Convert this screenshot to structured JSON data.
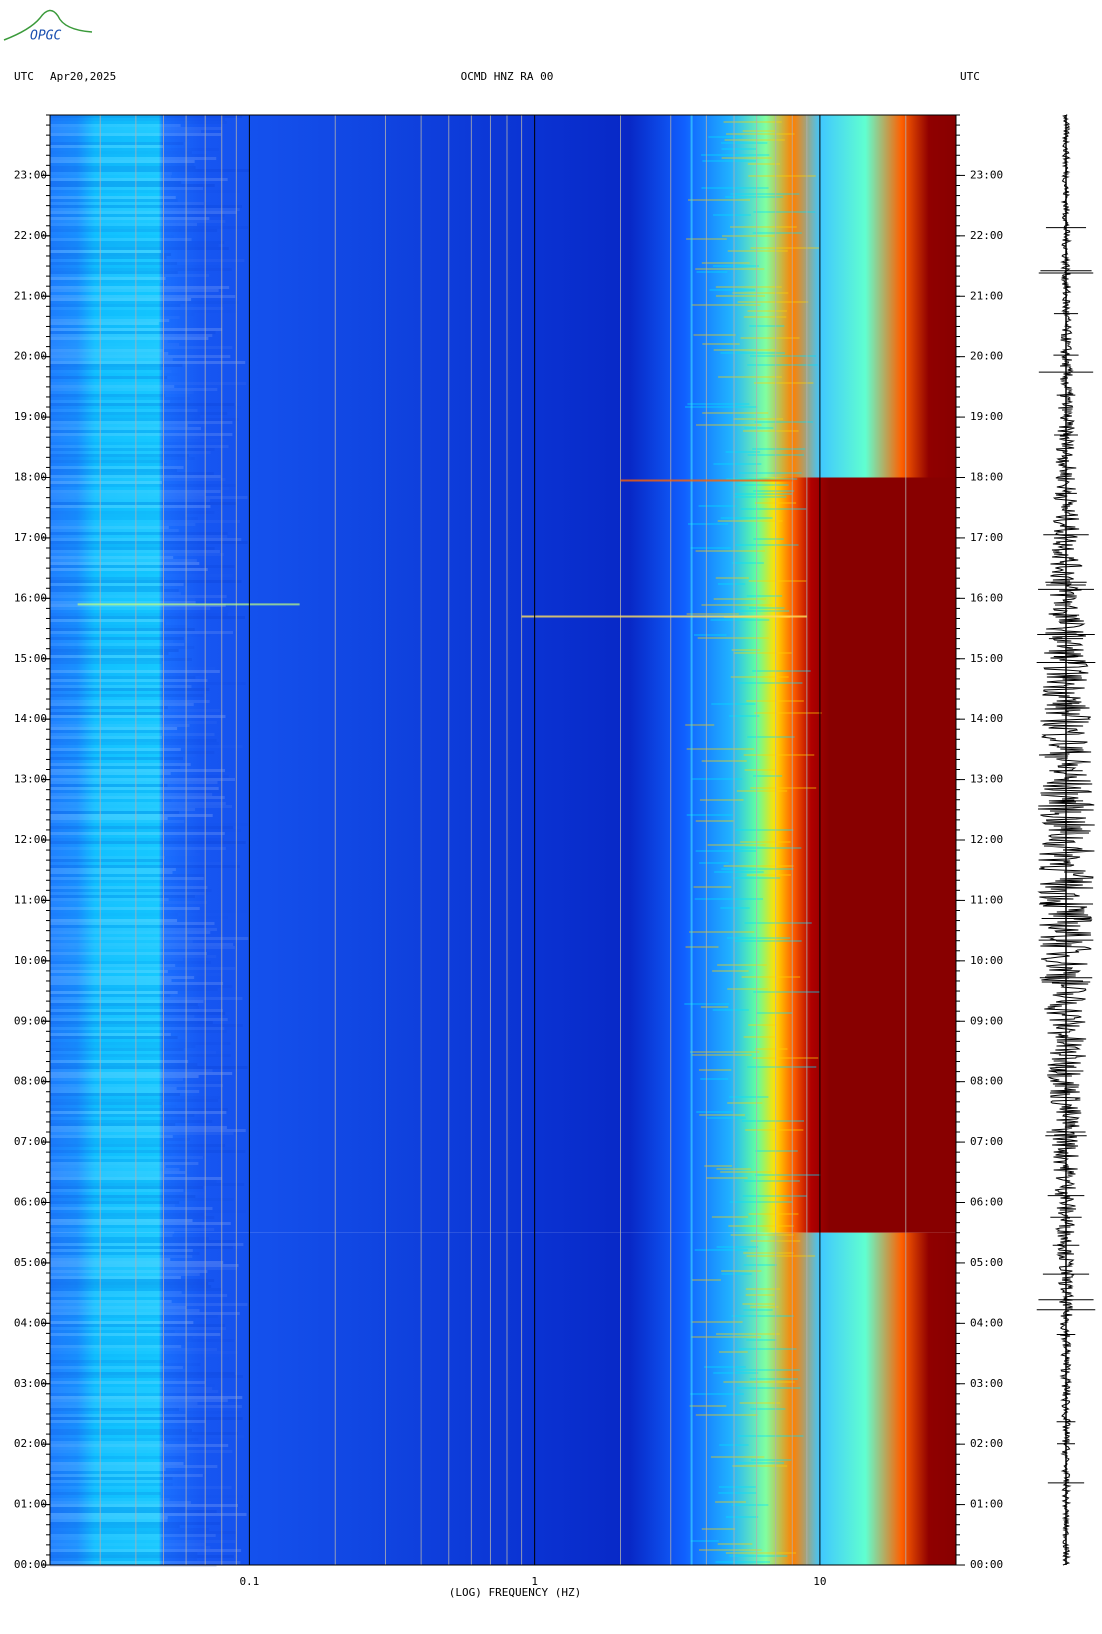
{
  "chart_data": {
    "type": "spectrogram",
    "logo": "OPGC",
    "left_label": "UTC",
    "date": "Apr20,2025",
    "title": "OCMD HNZ RA 00",
    "right_label": "UTC",
    "xlabel": "(LOG) FREQUENCY (HZ)",
    "xscale": "log",
    "xlim": [
      0.02,
      30
    ],
    "xticks": [
      {
        "value": 0.1,
        "label": "0.1"
      },
      1,
      10
    ],
    "ylim": [
      0,
      24
    ],
    "yticks": [
      {
        "value": 0,
        "label": "00:00"
      },
      {
        "value": 1,
        "label": "01:00"
      },
      {
        "value": 2,
        "label": "02:00"
      },
      {
        "value": 3,
        "label": "03:00"
      },
      {
        "value": 4,
        "label": "04:00"
      },
      {
        "value": 5,
        "label": "05:00"
      },
      {
        "value": 6,
        "label": "06:00"
      },
      {
        "value": 7,
        "label": "07:00"
      },
      {
        "value": 8,
        "label": "08:00"
      },
      {
        "value": 9,
        "label": "09:00"
      },
      {
        "value": 10,
        "label": "10:00"
      },
      {
        "value": 11,
        "label": "11:00"
      },
      {
        "value": 12,
        "label": "12:00"
      },
      {
        "value": 13,
        "label": "13:00"
      },
      {
        "value": 14,
        "label": "14:00"
      },
      {
        "value": 15,
        "label": "15:00"
      },
      {
        "value": 16,
        "label": "16:00"
      },
      {
        "value": 17,
        "label": "17:00"
      },
      {
        "value": 18,
        "label": "18:00"
      },
      {
        "value": 19,
        "label": "19:00"
      },
      {
        "value": 20,
        "label": "20:00"
      },
      {
        "value": 21,
        "label": "21:00"
      },
      {
        "value": 22,
        "label": "22:00"
      },
      {
        "value": 23,
        "label": "23:00"
      }
    ]
  }
}
